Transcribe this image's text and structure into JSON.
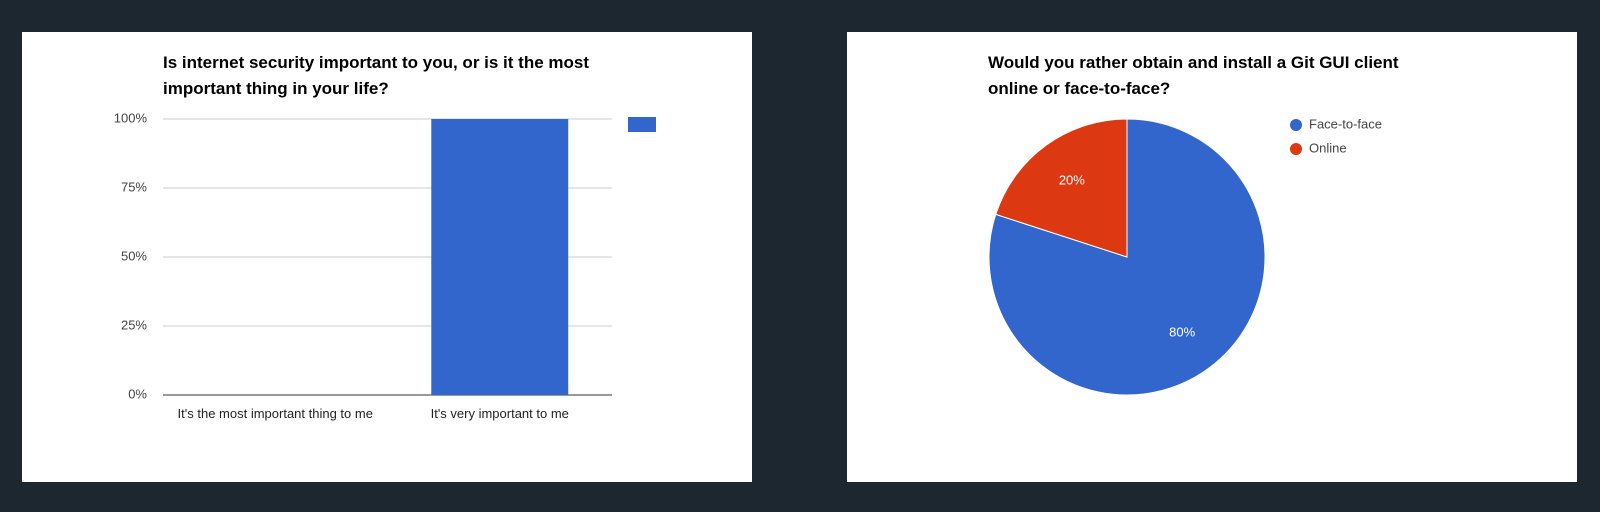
{
  "charts": [
    {
      "type": "bar",
      "title": "Is internet security important to you, or is it the most important thing in your life?",
      "categories": [
        "It's the most important thing to me",
        "It's very important to me"
      ],
      "values": [
        0,
        100
      ],
      "color": "#3366cc",
      "ylim": [
        0,
        100
      ],
      "yticks": [
        {
          "value": 0,
          "label": "0%"
        },
        {
          "value": 25,
          "label": "25%"
        },
        {
          "value": 50,
          "label": "50%"
        },
        {
          "value": 75,
          "label": "75%"
        },
        {
          "value": 100,
          "label": "100%"
        }
      ],
      "grid": true
    },
    {
      "type": "pie",
      "title": "Would you rather obtain and install a Git GUI client online or face-to-face?",
      "categories": [
        "Face-to-face",
        "Online"
      ],
      "values": [
        80,
        20
      ],
      "value_labels": [
        "80%",
        "20%"
      ],
      "colors": [
        "#3366cc",
        "#dc3912"
      ],
      "legend": "right"
    }
  ]
}
